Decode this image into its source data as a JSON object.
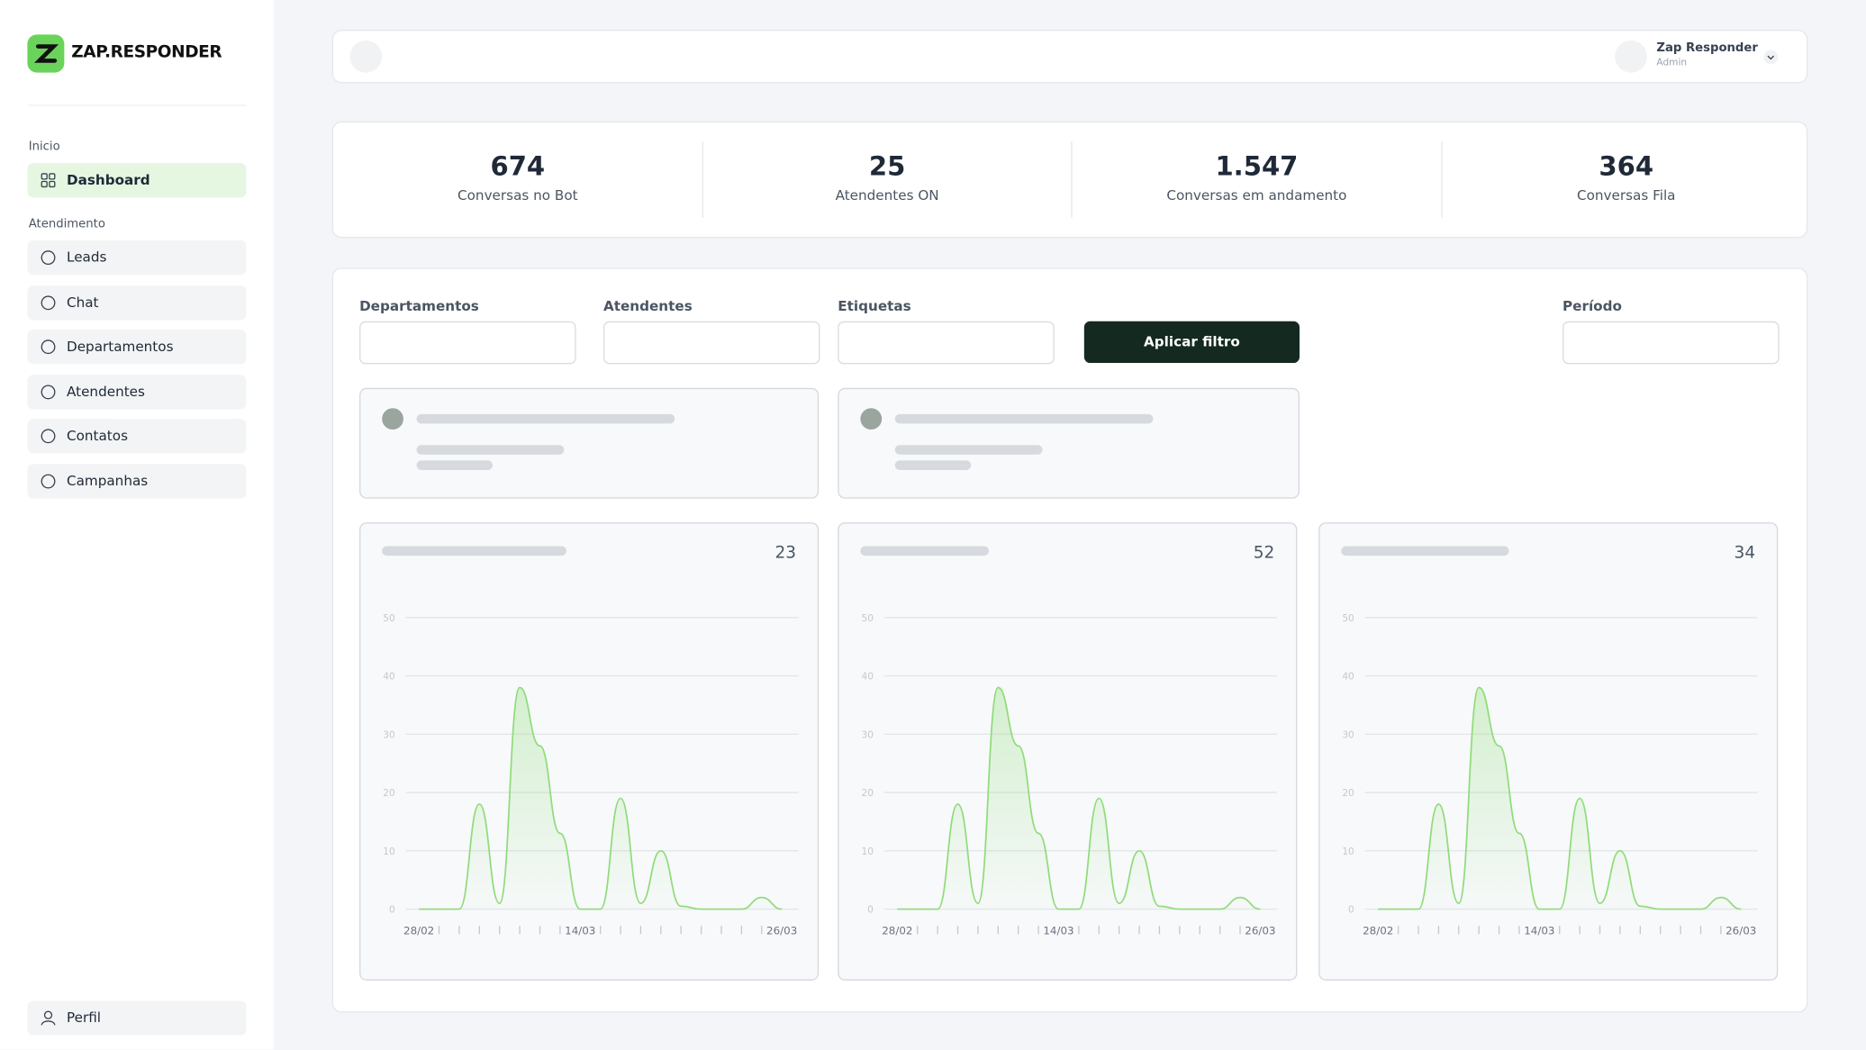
{
  "sidebar": {
    "brand": "ZAP.RESPONDER",
    "sections": [
      {
        "label": "Inicio",
        "items": [
          "Dashboard"
        ]
      },
      {
        "label": "Atendimento",
        "items": [
          "Leads",
          "Chat",
          "Departamentos",
          "Atendentes",
          "Contatos",
          "Campanhas"
        ]
      }
    ],
    "footer": "Perfil"
  },
  "topbar": {
    "user_name": "Zap Responder",
    "user_role": "Admin"
  },
  "stats": [
    {
      "value": "674",
      "label": "Conversas no Bot"
    },
    {
      "value": "25",
      "label": "Atendentes ON"
    },
    {
      "value": "1.547",
      "label": "Conversas em andamento"
    },
    {
      "value": "364",
      "label": "Conversas Fila"
    }
  ],
  "filters": {
    "fields": [
      "Departamentos",
      "Atendentes",
      "Etiquetas"
    ],
    "button": "Aplicar filtro",
    "period": "Período"
  },
  "chart_data": [
    {
      "type": "area",
      "total": 23,
      "color": "#8fdc7a",
      "categories": [
        "28/02",
        null,
        null,
        null,
        null,
        null,
        null,
        null,
        "14/03",
        null,
        null,
        null,
        null,
        null,
        null,
        null,
        null,
        null,
        "26/03"
      ],
      "values": [
        0,
        0,
        0,
        18,
        1,
        38,
        28,
        13,
        0,
        0,
        19,
        1,
        10,
        0.5,
        0,
        0,
        0,
        2,
        0
      ],
      "ylim": [
        0,
        50
      ],
      "yticks": [
        0,
        10,
        20,
        30,
        40,
        50
      ],
      "grid": true
    },
    {
      "type": "area",
      "total": 52,
      "color": "#8fdc7a",
      "categories": [
        "28/02",
        null,
        null,
        null,
        null,
        null,
        null,
        null,
        "14/03",
        null,
        null,
        null,
        null,
        null,
        null,
        null,
        null,
        null,
        "26/03"
      ],
      "values": [
        0,
        0,
        0,
        18,
        1,
        38,
        28,
        13,
        0,
        0,
        19,
        1,
        10,
        0.5,
        0,
        0,
        0,
        2,
        0
      ],
      "ylim": [
        0,
        50
      ],
      "yticks": [
        0,
        10,
        20,
        30,
        40,
        50
      ],
      "grid": true
    },
    {
      "type": "area",
      "total": 34,
      "color": "#8fdc7a",
      "categories": [
        "28/02",
        null,
        null,
        null,
        null,
        null,
        null,
        null,
        "14/03",
        null,
        null,
        null,
        null,
        null,
        null,
        null,
        null,
        null,
        "26/03"
      ],
      "values": [
        0,
        0,
        0,
        18,
        1,
        38,
        28,
        13,
        0,
        0,
        19,
        1,
        10,
        0.5,
        0,
        0,
        0,
        2,
        0
      ],
      "ylim": [
        0,
        50
      ],
      "yticks": [
        0,
        10,
        20,
        30,
        40,
        50
      ],
      "grid": true
    }
  ]
}
